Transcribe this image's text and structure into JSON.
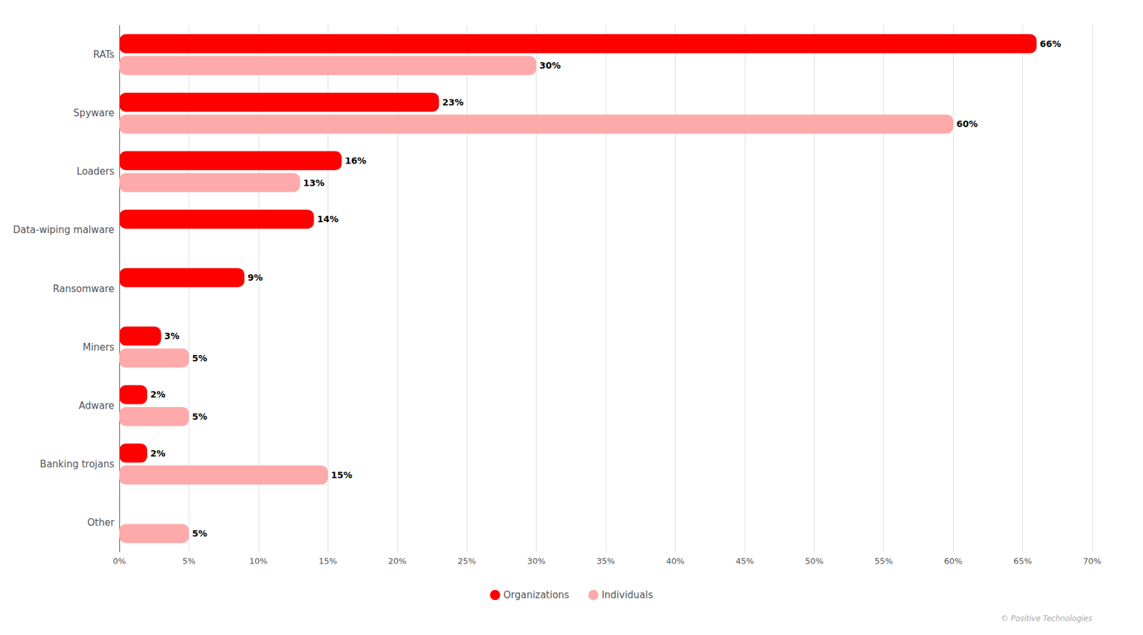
{
  "chart_data": {
    "type": "bar",
    "orientation": "horizontal",
    "categories": [
      "RATs",
      "Spyware",
      "Loaders",
      "Data-wiping malware",
      "Ransomware",
      "Miners",
      "Adware",
      "Banking trojans",
      "Other"
    ],
    "series": [
      {
        "name": "Organizations",
        "color": "#FF0000",
        "values": [
          66,
          23,
          16,
          14,
          9,
          3,
          2,
          2,
          0
        ],
        "value_labels": [
          "66%",
          "23%",
          "16%",
          "14%",
          "9%",
          "3%",
          "2%",
          "2%",
          null
        ]
      },
      {
        "name": "Individuals",
        "color": "#FFAAAA",
        "values": [
          30,
          60,
          13,
          0,
          0,
          5,
          5,
          15,
          5
        ],
        "value_labels": [
          "30%",
          "60%",
          "13%",
          null,
          null,
          "5%",
          "5%",
          "15%",
          "5%"
        ]
      }
    ],
    "xlim": [
      0,
      70
    ],
    "xticks": [
      {
        "value": 0,
        "label": "0%"
      },
      {
        "value": 5,
        "label": "5%"
      },
      {
        "value": 10,
        "label": "10%"
      },
      {
        "value": 15,
        "label": "15%"
      },
      {
        "value": 20,
        "label": "20%"
      },
      {
        "value": 25,
        "label": "25%"
      },
      {
        "value": 30,
        "label": "30%"
      },
      {
        "value": 35,
        "label": "35%"
      },
      {
        "value": 40,
        "label": "40%"
      },
      {
        "value": 45,
        "label": "45%"
      },
      {
        "value": 50,
        "label": "50%"
      },
      {
        "value": 55,
        "label": "55%"
      },
      {
        "value": 60,
        "label": "60%"
      },
      {
        "value": 65,
        "label": "65%"
      },
      {
        "value": 70,
        "label": "70%"
      }
    ],
    "grid": true,
    "legend": "bottom",
    "data_labels": true,
    "annotations": [
      {
        "text": "© Positive Technologies"
      }
    ]
  }
}
